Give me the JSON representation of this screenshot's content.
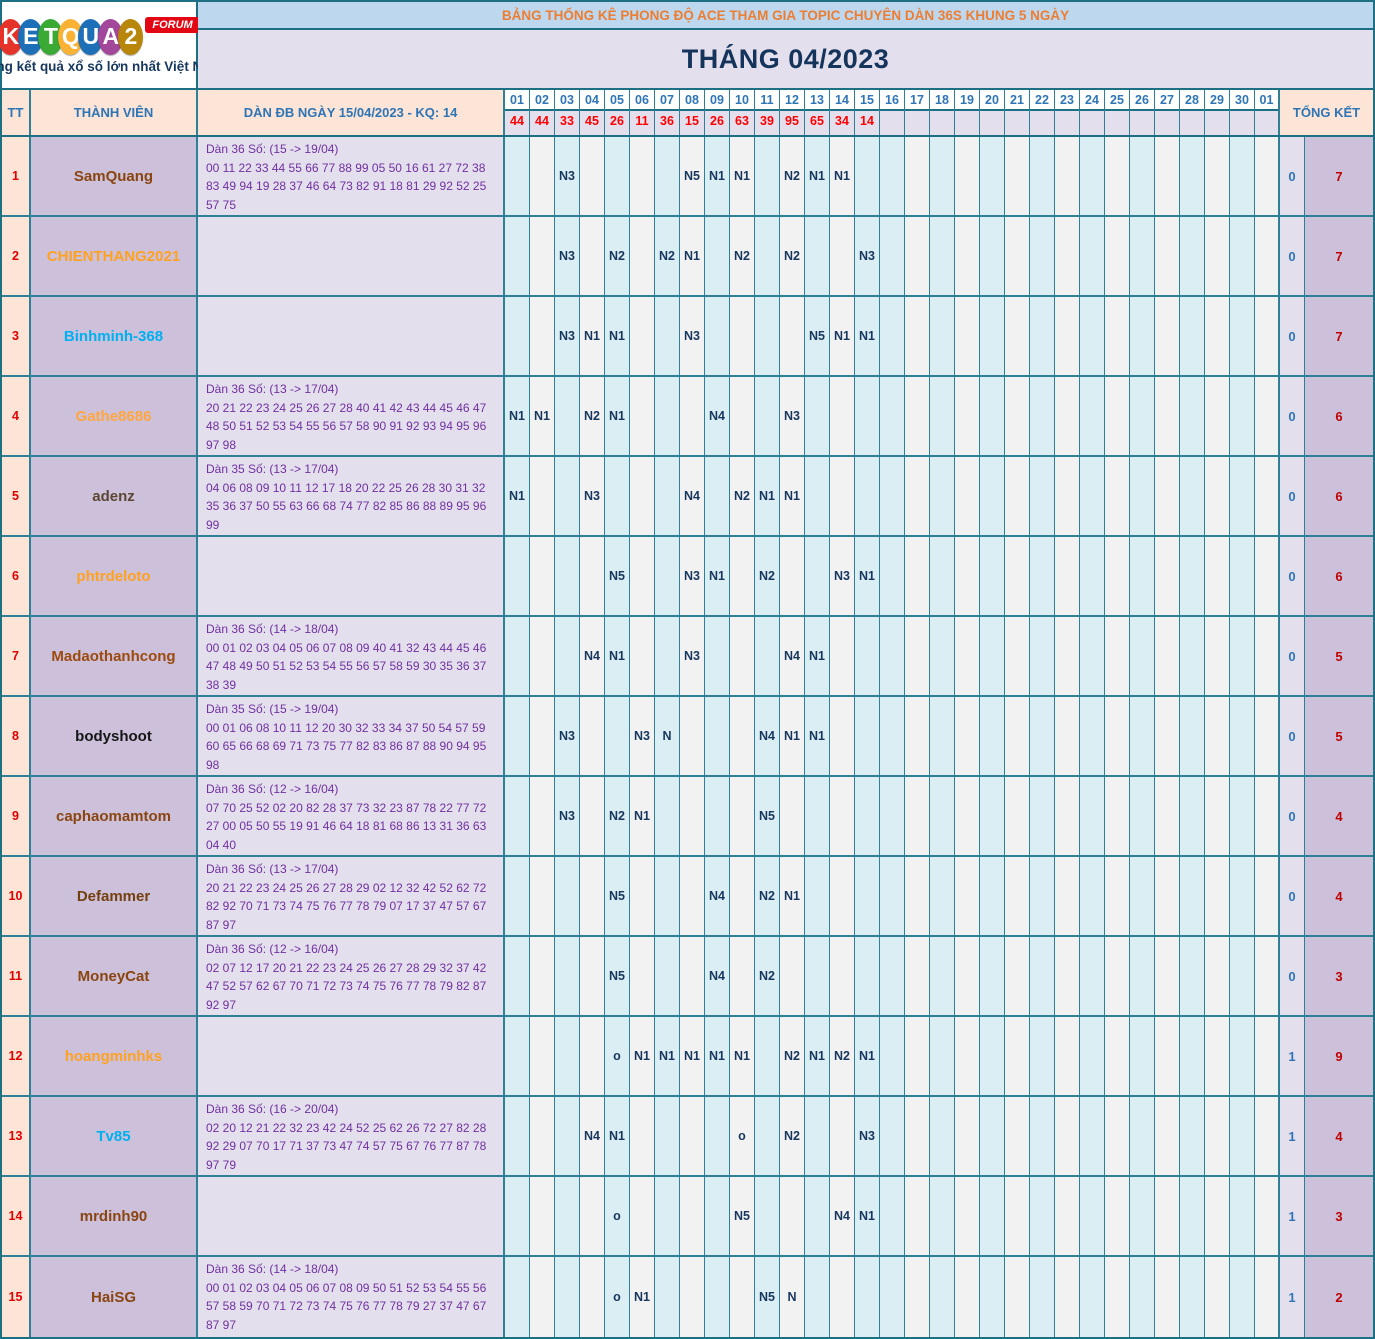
{
  "logo": {
    "brand": "KETQUA2",
    "letters": [
      "K",
      "E",
      "T",
      "Q",
      "U",
      "A",
      "2"
    ],
    "letter_colors": [
      "#e5332a",
      "#1d70b7",
      "#3aaa35",
      "#f9b233",
      "#1d70b7",
      "#a3479b",
      "#b8860b"
    ],
    "forum_badge": "FORUM",
    "tagline": "Trang kết quả xổ số lớn nhất Việt Nam"
  },
  "banner": {
    "title": "BẢNG THỐNG KÊ PHONG ĐỘ ACE THAM GIA TOPIC CHUYÊN DÀN 36S KHUNG 5 NGÀY",
    "month_title": "THÁNG 04/2023"
  },
  "colors": {
    "border_teal": "#2d8096",
    "banner1_bg": "#bdd7ee",
    "banner1_text": "#ed7d31",
    "banner2_bg": "#e4dfec",
    "header_peach": "#fce4d6",
    "header_blue_text": "#2e75b6",
    "value_red": "#ff0000",
    "member_bg": "#ccc0da",
    "dan_bg": "#e4dfec",
    "dan_text": "#7030a0",
    "mark_navy": "#17375e",
    "day_blue": "#daeef3",
    "day_white": "#f2f2f2",
    "total_right_red": "#c00000"
  },
  "table": {
    "headers": {
      "tt": "TT",
      "member": "THÀNH VIÊN",
      "dan": "DÀN ĐB NGÀY 15/04/2023 - KQ: 14",
      "total": "TỔNG KẾT"
    },
    "day_columns": [
      "01",
      "02",
      "03",
      "04",
      "05",
      "06",
      "07",
      "08",
      "09",
      "10",
      "11",
      "12",
      "13",
      "14",
      "15",
      "16",
      "17",
      "18",
      "19",
      "20",
      "21",
      "22",
      "23",
      "24",
      "25",
      "26",
      "27",
      "28",
      "29",
      "30",
      "01"
    ],
    "day_values": [
      "44",
      "44",
      "33",
      "45",
      "26",
      "11",
      "36",
      "15",
      "26",
      "63",
      "39",
      "95",
      "65",
      "34",
      "14",
      "",
      "",
      "",
      "",
      "",
      "",
      "",
      "",
      "",
      "",
      "",
      "",
      "",
      "",
      "",
      ""
    ],
    "rows": [
      {
        "tt": "1",
        "member": "SamQuang",
        "color": "#8a4510",
        "label": "Dàn 36 Số: (15 -> 19/04)",
        "nums": "00 11 22 33 44 55 66 77 88 99 05 50 16 61 27 72 38 83 49 94 19 28 37 46 64 73 82 91 18 81 29 92 52 25 57 75",
        "marks": {
          "3": "N3",
          "8": "N5",
          "9": "N1",
          "10": "N1",
          "12": "N2",
          "13": "N1",
          "14": "N1"
        },
        "total": [
          "0",
          "7"
        ]
      },
      {
        "tt": "2",
        "member": "CHIENTHANG2021",
        "color": "#ffa121",
        "label": "",
        "nums": "",
        "marks": {
          "3": "N3",
          "5": "N2",
          "7": "N2",
          "8": "N1",
          "10": "N2",
          "12": "N2",
          "15": "N3"
        },
        "total": [
          "0",
          "7"
        ]
      },
      {
        "tt": "3",
        "member": "Binhminh-368",
        "color": "#00b0f0",
        "label": "",
        "nums": "",
        "marks": {
          "3": "N3",
          "4": "N1",
          "5": "N1",
          "8": "N3",
          "13": "N5",
          "14": "N1",
          "15": "N1"
        },
        "total": [
          "0",
          "7"
        ]
      },
      {
        "tt": "4",
        "member": "Gathe8686",
        "color": "#ffa63f",
        "label": "Dàn 36 Số: (13 -> 17/04)",
        "nums": "20 21 22 23 24 25 26 27 28 40 41 42 43 44 45 46 47 48 50 51 52 53 54 55 56 57 58 90 91 92 93 94 95 96 97 98",
        "marks": {
          "1": "N1",
          "2": "N1",
          "4": "N2",
          "5": "N1",
          "9": "N4",
          "12": "N3"
        },
        "total": [
          "0",
          "6"
        ]
      },
      {
        "tt": "5",
        "member": "adenz",
        "color": "#5c4734",
        "label": "Dàn 35 Số: (13 -> 17/04)",
        "nums": "04 06 08 09 10 11 12 17 18 20 22 25 26 28 30 31 32 35 36 37 50 55 63 66 68 74 77 82 85 86 88 89 95 96 99",
        "marks": {
          "1": "N1",
          "4": "N3",
          "8": "N4",
          "10": "N2",
          "11": "N1",
          "12": "N1"
        },
        "total": [
          "0",
          "6"
        ]
      },
      {
        "tt": "6",
        "member": "phtrdeloto",
        "color": "#ffa121",
        "label": "",
        "nums": "",
        "marks": {
          "5": "N5",
          "8": "N3",
          "9": "N1",
          "11": "N2",
          "14": "N3",
          "15": "N1"
        },
        "total": [
          "0",
          "6"
        ]
      },
      {
        "tt": "7",
        "member": "Madaothanhcong",
        "color": "#9c4a0e",
        "label": "Dàn 36 Số: (14 -> 18/04)",
        "nums": "00 01 02 03 04 05 06 07 08 09 40 41 32 43 44 45 46 47 48 49 50 51 52 53 54 55 56 57 58 59 30 35 36 37 38 39",
        "marks": {
          "4": "N4",
          "5": "N1",
          "8": "N3",
          "12": "N4",
          "13": "N1"
        },
        "total": [
          "0",
          "5"
        ]
      },
      {
        "tt": "8",
        "member": "bodyshoot",
        "color": "#161616",
        "label": "Dàn 35 Số: (15 -> 19/04)",
        "nums": "00 01 06 08 10 11 12 20 30 32 33 34 37 50 54 57 59 60 65 66 68 69 71 73 75 77 82 83 86 87 88 90 94 95 98",
        "marks": {
          "3": "N3",
          "6": "N3",
          "7": "N",
          "11": "N4",
          "12": "N1",
          "13": "N1"
        },
        "total": [
          "0",
          "5"
        ]
      },
      {
        "tt": "9",
        "member": "caphaomamtom",
        "color": "#8a4510",
        "label": "Dàn 36 Số: (12 -> 16/04)",
        "nums": "07 70 25 52 02 20 82 28 37 73 32 23 87 78 22 77 72 27 00 05 50 55 19 91 46 64 18 81 68 86 13 31 36 63 04 40",
        "marks": {
          "3": "N3",
          "5": "N2",
          "6": "N1",
          "11": "N5"
        },
        "total": [
          "0",
          "4"
        ]
      },
      {
        "tt": "10",
        "member": "Defammer",
        "color": "#74400f",
        "label": "Dàn 36 Số: (13 -> 17/04)",
        "nums": "20 21 22 23 24 25 26 27 28 29 02 12 32 42 52 62 72 82 92 70 71 73 74 75 76 77 78 79 07 17 37 47 57 67 87 97",
        "marks": {
          "5": "N5",
          "9": "N4",
          "11": "N2",
          "12": "N1"
        },
        "total": [
          "0",
          "4"
        ]
      },
      {
        "tt": "11",
        "member": "MoneyCat",
        "color": "#8a4510",
        "label": "Dàn 36 Số: (12 -> 16/04)",
        "nums": "02 07 12 17 20 21 22 23 24 25 26 27 28 29 32 37 42 47 52 57 62 67 70 71 72 73 74 75 76 77 78 79 82 87 92 97",
        "marks": {
          "5": "N5",
          "9": "N4",
          "11": "N2"
        },
        "total": [
          "0",
          "3"
        ]
      },
      {
        "tt": "12",
        "member": "hoangminhks",
        "color": "#ffa121",
        "label": "",
        "nums": "",
        "marks": {
          "5": "o",
          "6": "N1",
          "7": "N1",
          "8": "N1",
          "9": "N1",
          "10": "N1",
          "12": "N2",
          "13": "N1",
          "14": "N2",
          "15": "N1"
        },
        "total": [
          "1",
          "9"
        ]
      },
      {
        "tt": "13",
        "member": "Tv85",
        "color": "#00b0f0",
        "label": "Dàn 36 Số: (16 -> 20/04)",
        "nums": "02 20 12 21 22 32 23 42 24 52 25 62 26 72 27 82 28 92 29 07 70 17 71 37 73 47 74 57 75 67 76 77 87 78 97 79",
        "marks": {
          "4": "N4",
          "5": "N1",
          "10": "o",
          "12": "N2",
          "15": "N3"
        },
        "total": [
          "1",
          "4"
        ]
      },
      {
        "tt": "14",
        "member": "mrdinh90",
        "color": "#8a4510",
        "label": "",
        "nums": "",
        "marks": {
          "5": "o",
          "10": "N5",
          "14": "N4",
          "15": "N1"
        },
        "total": [
          "1",
          "3"
        ]
      },
      {
        "tt": "15",
        "member": "HaiSG",
        "color": "#8a4510",
        "label": "Dàn 36 Số: (14 -> 18/04)",
        "nums": "00 01 02 03 04 05 06 07 08 09 50 51 52 53 54 55 56 57 58 59 70 71 72 73 74 75 76 77 78 79 27 37 47 67 87 97",
        "marks": {
          "5": "o",
          "6": "N1",
          "11": "N5",
          "12": "N"
        },
        "total": [
          "1",
          "2"
        ]
      }
    ]
  }
}
